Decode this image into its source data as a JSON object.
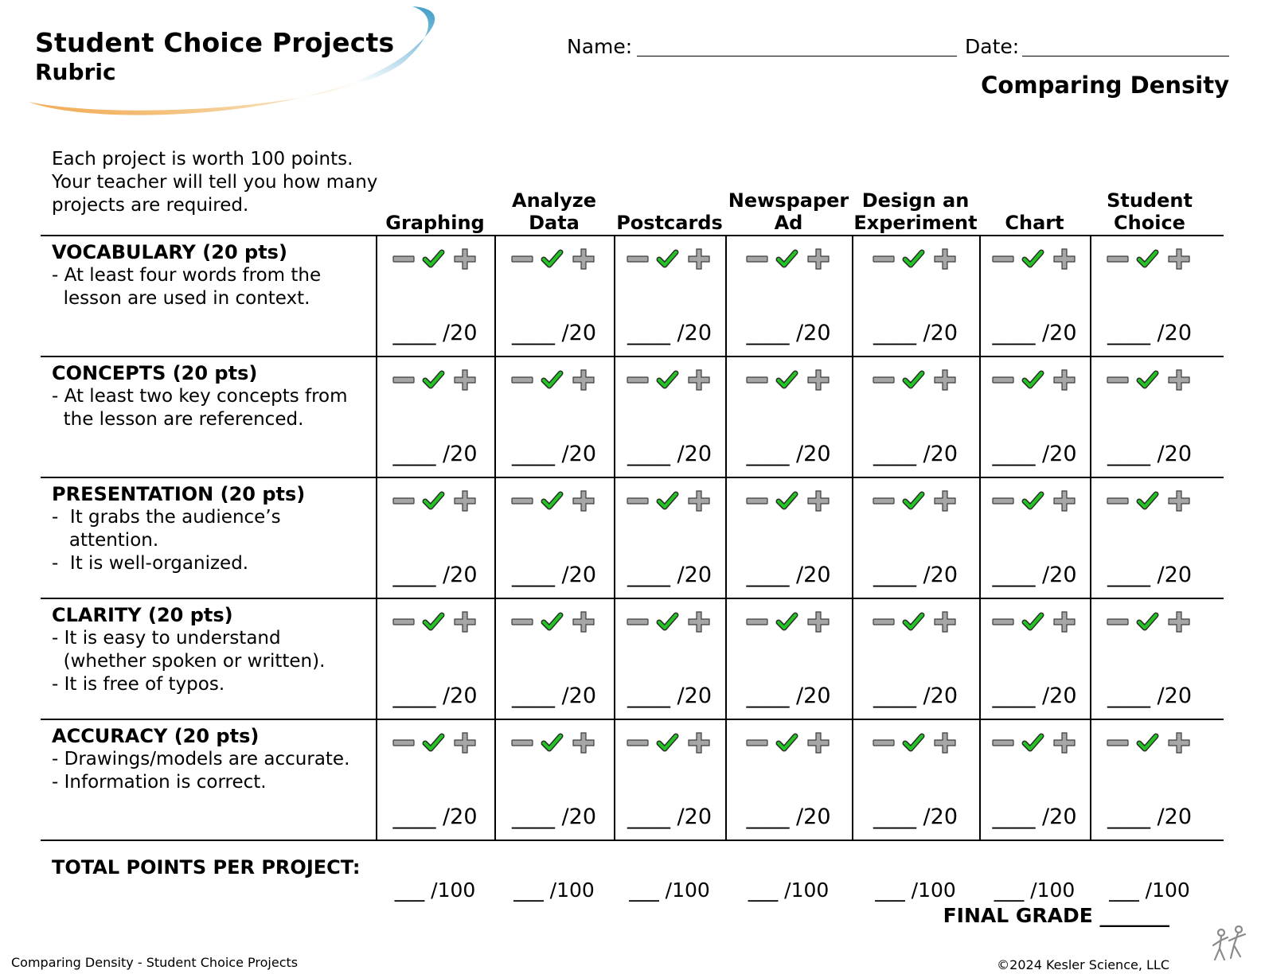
{
  "header": {
    "title": "Student Choice Projects",
    "subtitle": "Rubric",
    "name_label": "Name:",
    "date_label": "Date:",
    "topic": "Comparing Density"
  },
  "intro": "Each project is worth 100 points. Your teacher will tell you how many projects are required.",
  "columns": [
    [
      "Graphing"
    ],
    [
      "Analyze",
      "Data"
    ],
    [
      "Postcards"
    ],
    [
      "Newspaper",
      "Ad"
    ],
    [
      "Design an",
      "Experiment"
    ],
    [
      "Chart"
    ],
    [
      "Student",
      "Choice"
    ]
  ],
  "criteria": [
    {
      "title": "VOCABULARY (20 pts)",
      "lines": [
        "- At least four words from the",
        "  lesson are used in context."
      ],
      "score": "____ /20"
    },
    {
      "title": "CONCEPTS (20 pts)",
      "lines": [
        "- At least two key concepts from",
        "  the lesson are referenced."
      ],
      "score": "____ /20"
    },
    {
      "title": "PRESENTATION (20 pts)",
      "lines": [
        "-  It grabs the audience’s",
        "   attention.",
        "-  It is well-organized."
      ],
      "score": "____ /20"
    },
    {
      "title": "CLARITY (20 pts)",
      "lines": [
        "- It is easy to understand",
        "  (whether spoken or written).",
        "- It is free of typos."
      ],
      "score": "____ /20"
    },
    {
      "title": "ACCURACY (20 pts)",
      "lines": [
        "- Drawings/models are accurate.",
        "- Information is correct."
      ],
      "score": "____ /20"
    }
  ],
  "mark_icons": [
    "minus-icon",
    "check-icon",
    "plus-icon"
  ],
  "total_label": "TOTAL POINTS PER PROJECT:",
  "total_score": "___ /100",
  "final_grade": "FINAL GRADE _______",
  "footer": {
    "left": "Comparing Density - Student Choice Projects",
    "right": "©2024  Kesler Science, LLC"
  },
  "colors": {
    "check": "#22c322",
    "mark_gray": "#a6a6a6",
    "swoosh_blue": "#3d9cc7",
    "swoosh_orange": "#f1a54a"
  }
}
